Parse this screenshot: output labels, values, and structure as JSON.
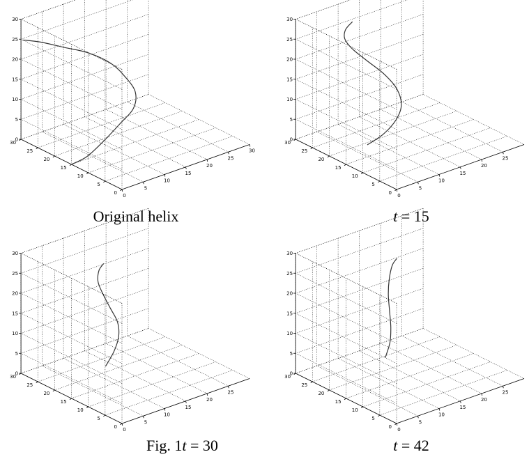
{
  "figure": {
    "label": "Fig. 1"
  },
  "chart_data": [
    {
      "type": "line3d",
      "caption": "Original helix",
      "caption_italic_var": "",
      "caption_value": "",
      "xticks": [
        0,
        5,
        10,
        15,
        20,
        25,
        30
      ],
      "yticks": [
        0,
        5,
        10,
        15,
        20,
        25,
        30
      ],
      "zticks": [
        0,
        5,
        10,
        15,
        20,
        25,
        30
      ],
      "xlim": [
        0,
        30
      ],
      "ylim": [
        0,
        30
      ],
      "zlim": [
        0,
        30
      ],
      "grid": true,
      "curve": [
        {
          "x": 0,
          "y": 15,
          "z": 0
        },
        {
          "x": 2,
          "y": 13,
          "z": 2
        },
        {
          "x": 5,
          "y": 12,
          "z": 5
        },
        {
          "x": 9,
          "y": 12,
          "z": 8
        },
        {
          "x": 13,
          "y": 13,
          "z": 10
        },
        {
          "x": 15,
          "y": 15,
          "z": 12.5
        },
        {
          "x": 15,
          "y": 18,
          "z": 15
        },
        {
          "x": 14,
          "y": 21,
          "z": 17.5
        },
        {
          "x": 11,
          "y": 24,
          "z": 20
        },
        {
          "x": 7,
          "y": 26,
          "z": 22
        },
        {
          "x": 3,
          "y": 28,
          "z": 24
        },
        {
          "x": 0,
          "y": 29.5,
          "z": 25
        }
      ]
    },
    {
      "type": "line3d",
      "caption": "",
      "caption_italic_var": "t",
      "caption_value": " = 15",
      "xticks": [
        0,
        5,
        10,
        15,
        20,
        25
      ],
      "yticks": [
        0,
        5,
        10,
        15,
        20,
        25,
        30
      ],
      "zticks": [
        0,
        5,
        10,
        15,
        20,
        25,
        30
      ],
      "xlim": [
        0,
        30
      ],
      "ylim": [
        0,
        30
      ],
      "zlim": [
        0,
        30
      ],
      "grid": true,
      "curve": [
        {
          "x": 5,
          "y": 15,
          "z": 3
        },
        {
          "x": 8,
          "y": 14,
          "z": 5
        },
        {
          "x": 11,
          "y": 14,
          "z": 7.5
        },
        {
          "x": 13,
          "y": 15,
          "z": 10
        },
        {
          "x": 13.5,
          "y": 17,
          "z": 13
        },
        {
          "x": 12.5,
          "y": 19.5,
          "z": 16
        },
        {
          "x": 10.5,
          "y": 22,
          "z": 19
        },
        {
          "x": 8.5,
          "y": 24,
          "z": 22
        },
        {
          "x": 8,
          "y": 25.5,
          "z": 24
        },
        {
          "x": 9,
          "y": 26.5,
          "z": 25.5
        },
        {
          "x": 11,
          "y": 27,
          "z": 26.5
        }
      ]
    },
    {
      "type": "line3d",
      "caption": "",
      "caption_italic_var": "t",
      "caption_value": " = 30",
      "xticks": [
        0,
        5,
        10,
        15,
        20,
        25
      ],
      "yticks": [
        0,
        5,
        10,
        15,
        20,
        25,
        30
      ],
      "zticks": [
        0,
        5,
        10,
        15,
        20,
        25,
        30
      ],
      "xlim": [
        0,
        30
      ],
      "ylim": [
        0,
        30
      ],
      "zlim": [
        0,
        30
      ],
      "grid": true,
      "curve": [
        {
          "x": 8,
          "y": 15,
          "z": 5
        },
        {
          "x": 10,
          "y": 15,
          "z": 8
        },
        {
          "x": 11.5,
          "y": 15.5,
          "z": 11
        },
        {
          "x": 12,
          "y": 16.5,
          "z": 14
        },
        {
          "x": 11.5,
          "y": 18,
          "z": 17
        },
        {
          "x": 11,
          "y": 19.5,
          "z": 20
        },
        {
          "x": 11,
          "y": 21,
          "z": 22.5
        },
        {
          "x": 12,
          "y": 22,
          "z": 24.5
        },
        {
          "x": 13.5,
          "y": 22.5,
          "z": 25.5
        }
      ]
    },
    {
      "type": "line3d",
      "caption": "",
      "caption_italic_var": "t",
      "caption_value": " = 42",
      "xticks": [
        0,
        5,
        10,
        15,
        20,
        25
      ],
      "yticks": [
        0,
        5,
        10,
        15,
        20,
        25,
        30
      ],
      "zticks": [
        0,
        5,
        10,
        15,
        20,
        25,
        30
      ],
      "xlim": [
        0,
        30
      ],
      "ylim": [
        0,
        30
      ],
      "zlim": [
        0,
        30
      ],
      "grid": true,
      "curve": [
        {
          "x": 10,
          "y": 16,
          "z": 6
        },
        {
          "x": 11.5,
          "y": 16.5,
          "z": 9
        },
        {
          "x": 12.5,
          "y": 17.5,
          "z": 12
        },
        {
          "x": 13,
          "y": 18.5,
          "z": 15.5
        },
        {
          "x": 13.5,
          "y": 19.5,
          "z": 19
        },
        {
          "x": 14.5,
          "y": 20.5,
          "z": 22
        },
        {
          "x": 16,
          "y": 21.5,
          "z": 24.5
        },
        {
          "x": 17.5,
          "y": 22,
          "z": 25.5
        }
      ]
    }
  ]
}
